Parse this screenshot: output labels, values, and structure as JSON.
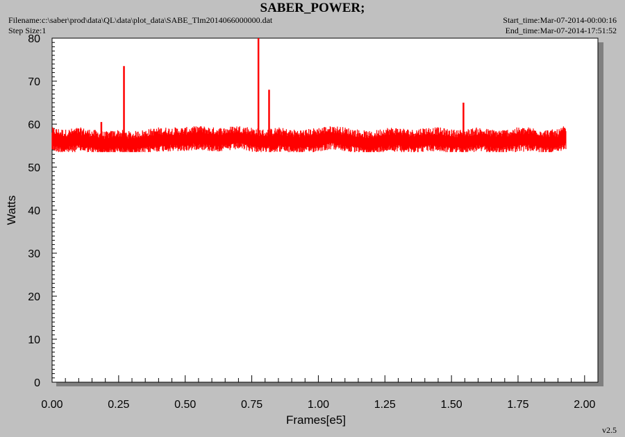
{
  "header": {
    "title": "SABER_POWER;",
    "filename": "Filename:c:\\saber\\prod\\data\\QL\\data\\plot_data\\SABE_Tlm2014066000000.dat",
    "step_size": "Step Size:1",
    "start_time": "Start_time:Mar-07-2014-00:00:16",
    "end_time": "End_time:Mar-07-2014-17:51:52"
  },
  "footer": {
    "version": "v2.5"
  },
  "colors": {
    "series": "#ff0000",
    "plot_bg": "#ffffff",
    "page_bg": "#c0c0c0",
    "axis": "#000000"
  },
  "chart_data": {
    "type": "line",
    "title": "SABER_POWER;",
    "xlabel": "Frames[e5]",
    "ylabel": "Watts",
    "xlim": [
      0.0,
      2.05
    ],
    "ylim": [
      0,
      80
    ],
    "x_ticks": [
      "0.00",
      "0.25",
      "0.50",
      "0.75",
      "1.00",
      "1.25",
      "1.50",
      "1.75",
      "2.00"
    ],
    "y_ticks": [
      "0",
      "10",
      "20",
      "30",
      "40",
      "50",
      "60",
      "70",
      "80"
    ],
    "grid": false,
    "legend": "none",
    "series": [
      {
        "color": "#ff0000",
        "x_range": [
          0.0,
          1.93
        ],
        "baseline_y": [
          [
            0.0,
            56.5
          ],
          [
            0.05,
            56.0
          ],
          [
            0.1,
            56.5
          ],
          [
            0.15,
            56.0
          ],
          [
            0.2,
            55.5
          ],
          [
            0.25,
            56.0
          ],
          [
            0.3,
            55.5
          ],
          [
            0.35,
            56.0
          ],
          [
            0.4,
            56.5
          ],
          [
            0.45,
            56.5
          ],
          [
            0.5,
            56.5
          ],
          [
            0.55,
            57.0
          ],
          [
            0.6,
            56.5
          ],
          [
            0.65,
            56.5
          ],
          [
            0.7,
            57.0
          ],
          [
            0.75,
            56.5
          ],
          [
            0.8,
            56.0
          ],
          [
            0.85,
            56.5
          ],
          [
            0.9,
            56.0
          ],
          [
            0.95,
            56.0
          ],
          [
            1.0,
            56.5
          ],
          [
            1.05,
            57.0
          ],
          [
            1.1,
            56.5
          ],
          [
            1.15,
            56.0
          ],
          [
            1.2,
            55.5
          ],
          [
            1.25,
            56.5
          ],
          [
            1.3,
            56.5
          ],
          [
            1.35,
            56.0
          ],
          [
            1.4,
            56.5
          ],
          [
            1.45,
            56.5
          ],
          [
            1.5,
            56.0
          ],
          [
            1.55,
            56.0
          ],
          [
            1.6,
            56.5
          ],
          [
            1.65,
            56.0
          ],
          [
            1.7,
            56.0
          ],
          [
            1.75,
            56.5
          ],
          [
            1.8,
            56.5
          ],
          [
            1.85,
            56.0
          ],
          [
            1.9,
            56.0
          ],
          [
            1.93,
            57.0
          ]
        ],
        "noise_band": [
          53.5,
          59.5
        ],
        "spikes": [
          {
            "x": 0.185,
            "y": 60.5
          },
          {
            "x": 0.27,
            "y": 73.5
          },
          {
            "x": 0.775,
            "y": 80.0
          },
          {
            "x": 0.815,
            "y": 68.0
          },
          {
            "x": 1.545,
            "y": 65.0
          }
        ]
      }
    ]
  }
}
